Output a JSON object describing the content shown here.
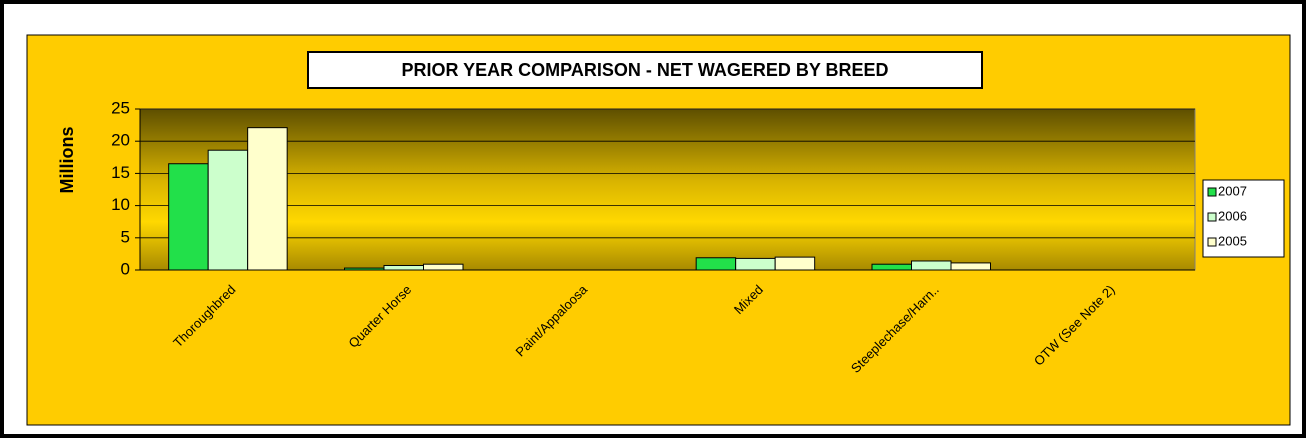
{
  "chart_data": {
    "type": "bar",
    "title": "PRIOR YEAR COMPARISON - NET WAGERED BY BREED",
    "y_label": "Millions",
    "categories": [
      "Thoroughbred",
      "Quarter Horse",
      "Paint/Appaloosa",
      "Mixed",
      "Steeplechase/Harn..",
      "OTW (See Note 2)"
    ],
    "series": [
      {
        "name": "2007",
        "color": "#22e04a",
        "values": [
          16.5,
          0.3,
          0,
          1.9,
          0.9,
          0
        ]
      },
      {
        "name": "2006",
        "color": "#ccffcc",
        "values": [
          18.6,
          0.7,
          0,
          1.8,
          1.4,
          0
        ]
      },
      {
        "name": "2005",
        "color": "#ffffcc",
        "values": [
          22.1,
          0.9,
          0,
          2.0,
          1.1,
          0
        ]
      }
    ],
    "ylim": [
      0,
      25
    ],
    "yticks": [
      0,
      5,
      10,
      15,
      20,
      25
    ],
    "grid": true,
    "legend": "right"
  }
}
